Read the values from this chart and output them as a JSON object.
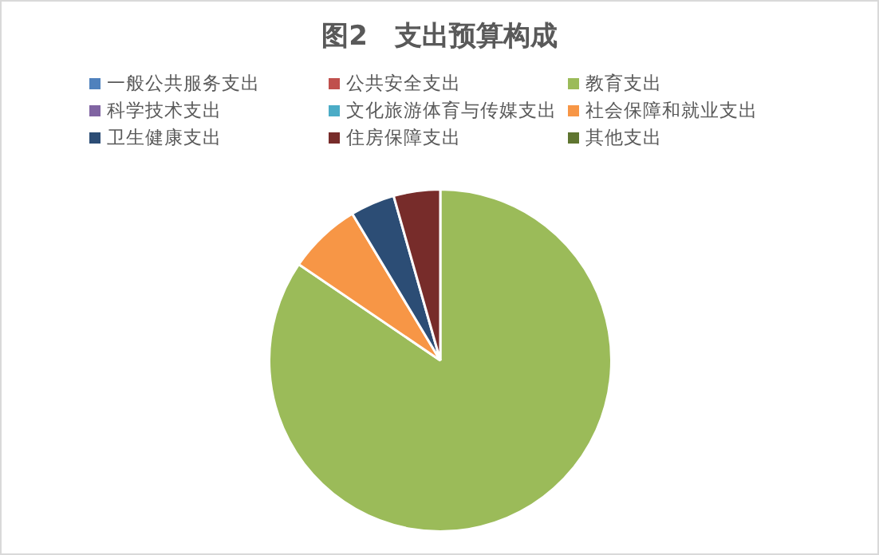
{
  "chart_data": {
    "type": "pie",
    "title": "图2　支出预算构成",
    "categories": [
      "一般公共服务支出",
      "公共安全支出",
      "教育支出",
      "科学技术支出",
      "文化旅游体育与传媒支出",
      "社会保障和就业支出",
      "卫生健康支出",
      "住房保障支出",
      "其他支出"
    ],
    "values": [
      0,
      0,
      84.5,
      0,
      0,
      6.9,
      4.2,
      4.4,
      0
    ],
    "colors": [
      "#4f81bd",
      "#c0504d",
      "#9bbb59",
      "#8064a2",
      "#4bacc6",
      "#f79646",
      "#2c4d75",
      "#772c2a",
      "#5f7530"
    ],
    "legend": "top"
  }
}
